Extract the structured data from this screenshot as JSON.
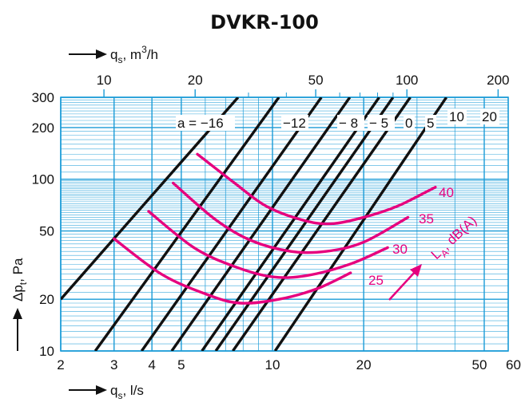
{
  "chart_data": {
    "type": "line",
    "title": "DVKR-100",
    "x_axis_bottom": {
      "label_main": "q",
      "label_sub": "s",
      "label_unit": ", l/s",
      "scale": "log",
      "range": [
        2,
        60
      ],
      "major_ticks": [
        2,
        3,
        4,
        5,
        10,
        20,
        50
      ],
      "minor_ticks": [
        6,
        7,
        8,
        9,
        30,
        40
      ],
      "tick_labels": [
        "2",
        "3",
        "4",
        "5",
        "10",
        "20",
        "50",
        "60"
      ]
    },
    "x_axis_top": {
      "label_main": "q",
      "label_sub": "s",
      "label_unit": ", m",
      "label_sup": "3",
      "label_tail": "/h",
      "scale": "log",
      "range_l_s": [
        2,
        60
      ],
      "tick_values_m3h": [
        10,
        20,
        50,
        100,
        200
      ],
      "tick_labels": [
        "10",
        "20",
        "50",
        "100",
        "200"
      ],
      "minor_values_m3h": [
        30,
        40,
        60,
        70,
        80,
        90
      ]
    },
    "y_axis": {
      "label_main": "Δp",
      "label_sub": "t",
      "label_unit": ", Pa",
      "scale": "log",
      "range": [
        10,
        300
      ],
      "major_ticks": [
        10,
        20,
        50,
        100,
        200,
        300
      ],
      "tick_labels": [
        "10",
        "20",
        "50",
        "100",
        "200",
        "300"
      ]
    },
    "grid": true,
    "grid_color": "#1a9bd7",
    "line_color": "#111111",
    "curve_color": "#e6007e",
    "damper_lines": [
      {
        "label": "a = −16",
        "points": [
          [
            2.0,
            20
          ],
          [
            7.7,
            300
          ]
        ]
      },
      {
        "label": "−12",
        "points": [
          [
            2.6,
            10
          ],
          [
            10.5,
            300
          ]
        ]
      },
      {
        "label": "− 8",
        "points": [
          [
            3.7,
            10
          ],
          [
            14.5,
            300
          ]
        ]
      },
      {
        "label": "− 5",
        "points": [
          [
            4.65,
            10
          ],
          [
            18.0,
            300
          ]
        ]
      },
      {
        "label": "0",
        "points": [
          [
            5.85,
            10
          ],
          [
            22.5,
            300
          ]
        ]
      },
      {
        "label": "5",
        "points": [
          [
            6.5,
            10
          ],
          [
            25.0,
            300
          ]
        ]
      },
      {
        "label": "10",
        "points": [
          [
            7.4,
            10
          ],
          [
            28.5,
            300
          ]
        ]
      },
      {
        "label": "20",
        "points": [
          [
            10.2,
            10
          ],
          [
            37.5,
            300
          ]
        ]
      }
    ],
    "sound_curves": [
      {
        "label": "25",
        "points": [
          [
            3.0,
            45
          ],
          [
            4.3,
            28
          ],
          [
            6.0,
            21.5
          ],
          [
            7.8,
            19
          ],
          [
            10.5,
            20
          ],
          [
            14.0,
            23
          ],
          [
            18.1,
            28.5
          ]
        ]
      },
      {
        "label": "30",
        "points": [
          [
            3.9,
            65
          ],
          [
            5.5,
            40
          ],
          [
            7.5,
            31
          ],
          [
            10.0,
            27
          ],
          [
            13.0,
            27.5
          ],
          [
            18.0,
            32
          ],
          [
            24.0,
            40
          ]
        ]
      },
      {
        "label": "35",
        "points": [
          [
            4.7,
            95
          ],
          [
            6.5,
            58
          ],
          [
            8.5,
            44
          ],
          [
            11.5,
            38
          ],
          [
            15.0,
            38
          ],
          [
            20.0,
            43
          ],
          [
            28.0,
            60
          ]
        ]
      },
      {
        "label": "40",
        "points": [
          [
            5.65,
            140
          ],
          [
            7.5,
            95
          ],
          [
            9.5,
            70
          ],
          [
            12.5,
            58
          ],
          [
            15.5,
            55
          ],
          [
            20.0,
            60
          ],
          [
            26.0,
            70
          ],
          [
            34.5,
            90
          ]
        ]
      }
    ],
    "legend_label": "L",
    "legend_sub": "A",
    "legend_unit": ", dB(A)"
  }
}
